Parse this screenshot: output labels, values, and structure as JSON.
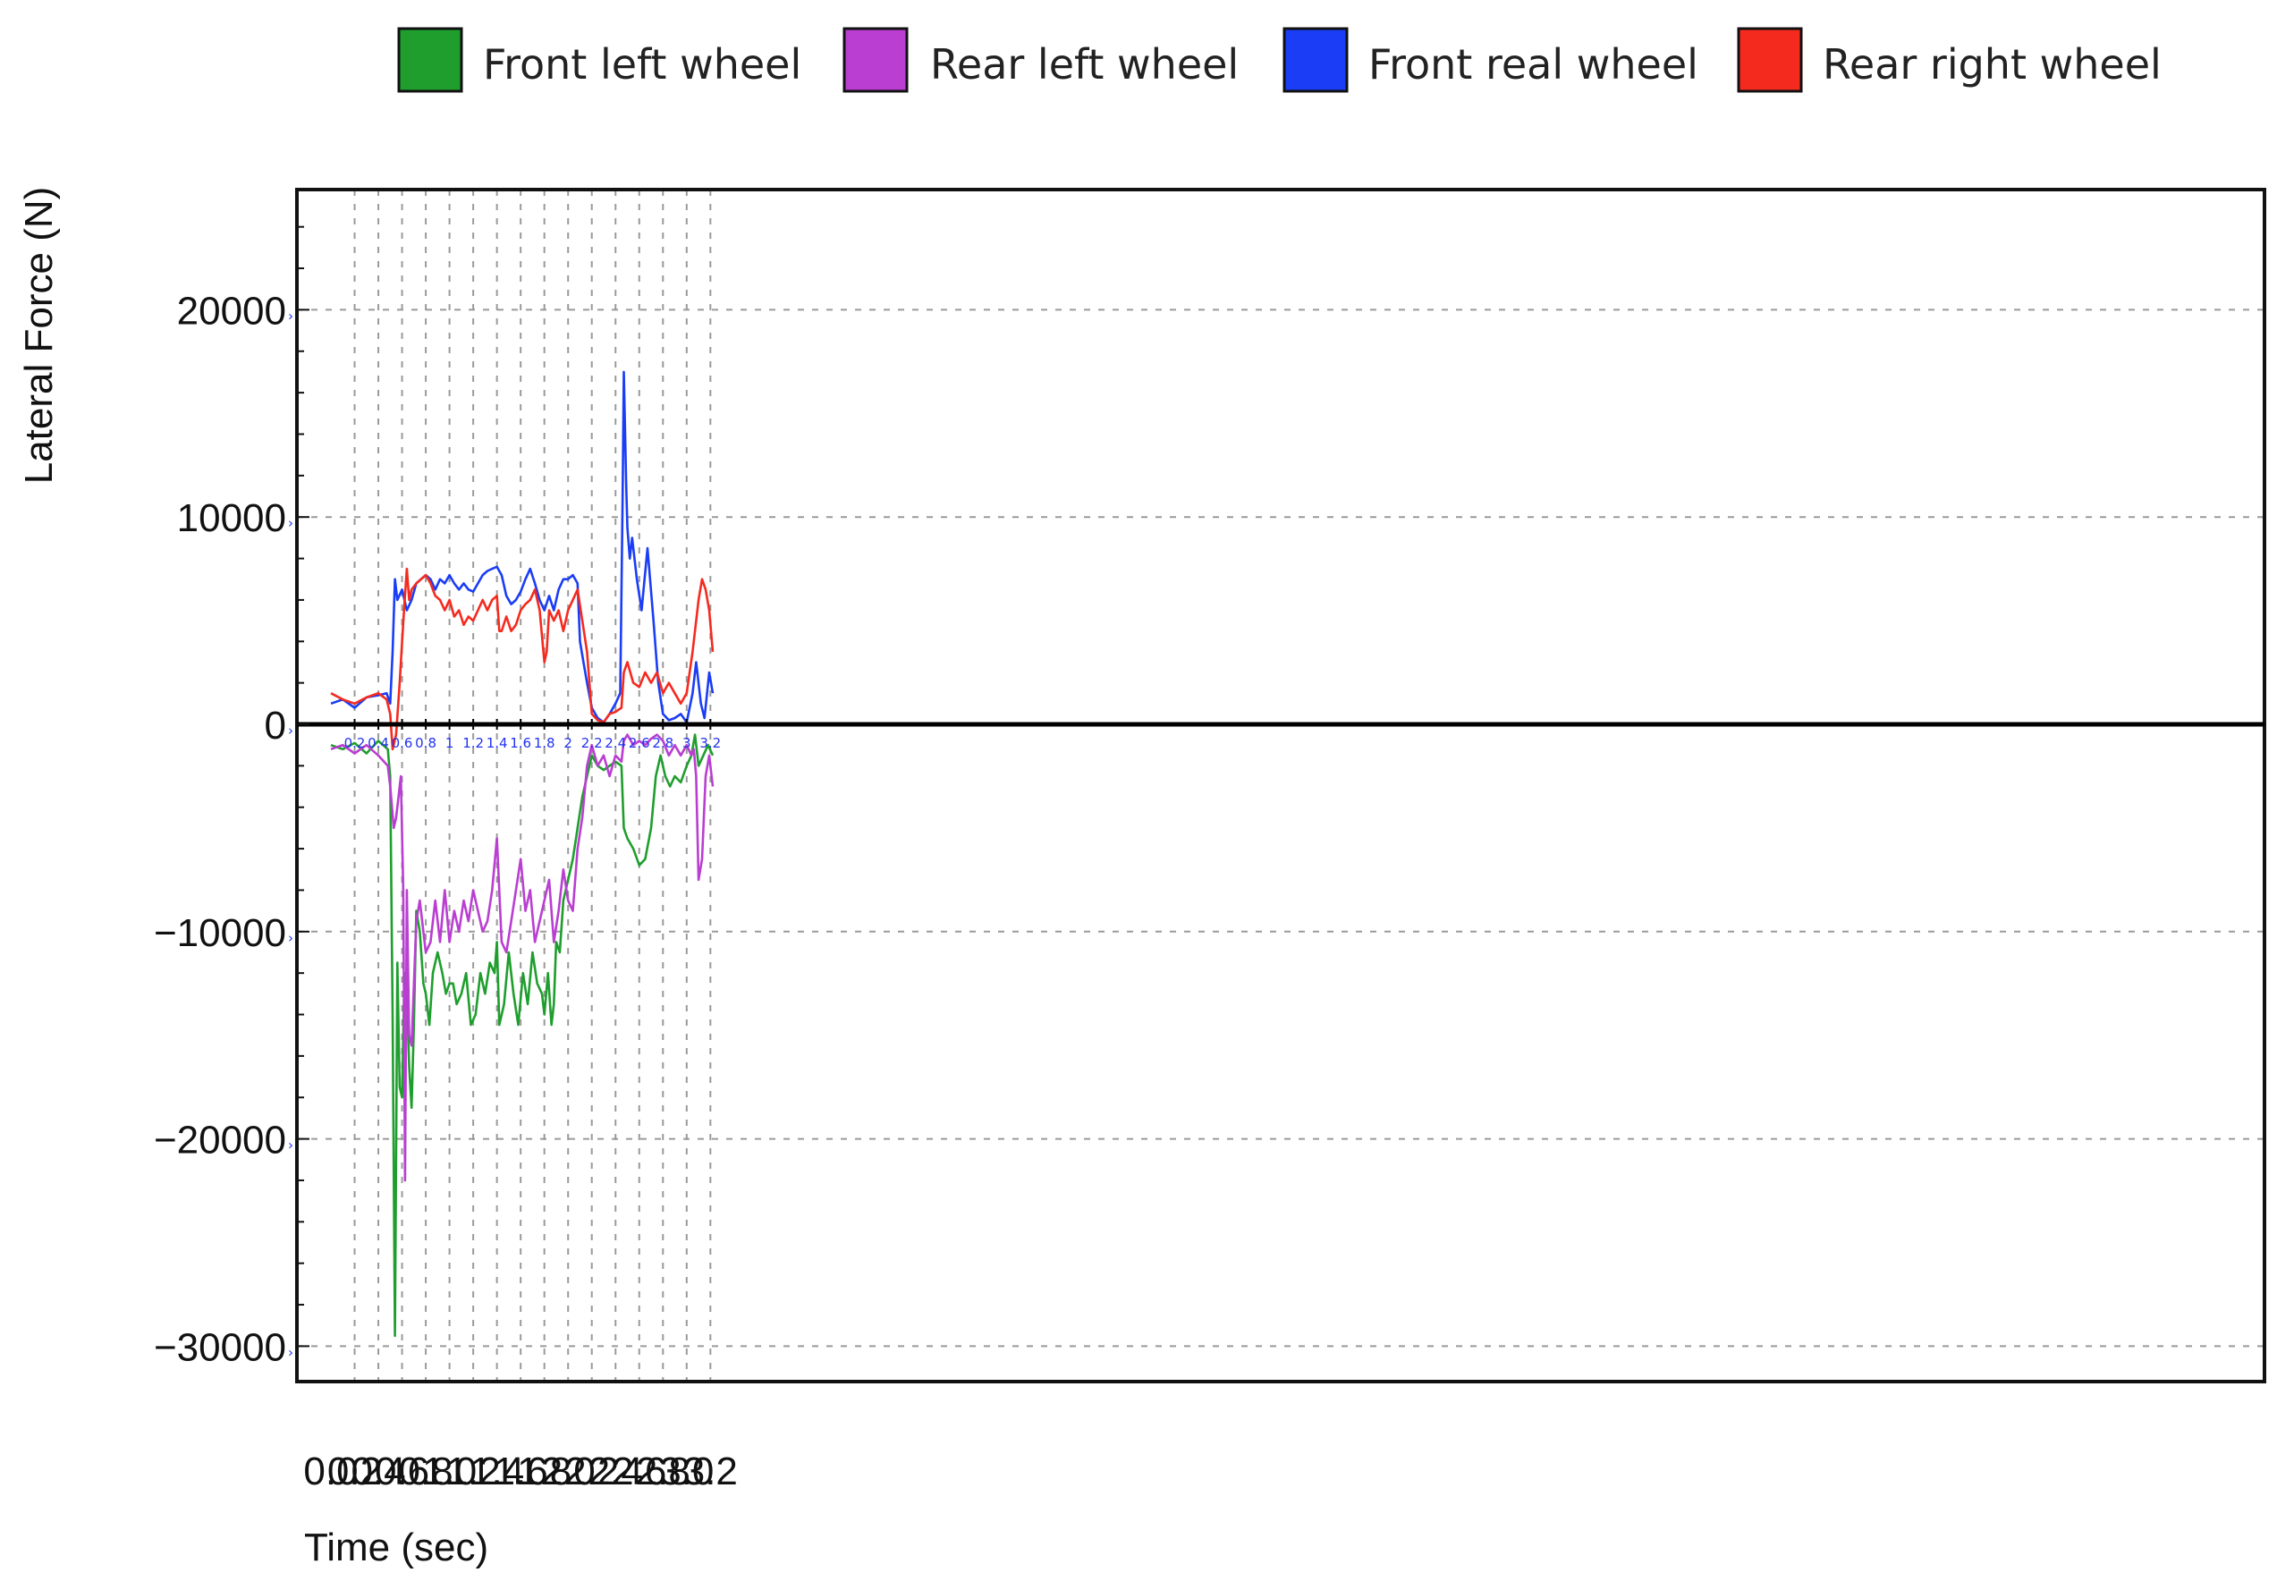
{
  "chart_data": {
    "type": "line",
    "xlabel": "Time (sec)",
    "ylabel": "Lateral Force (N)",
    "xlim": [
      0.0,
      3.23
    ],
    "ylim": [
      -32000,
      26000
    ],
    "x_ticks": [
      "0.0",
      "0.2",
      "0.4",
      "0.6",
      "0.8",
      "1.0",
      "1.2",
      "1.4",
      "1.6",
      "1.8",
      "2.0",
      "2.2",
      "2.4",
      "2.6",
      "2.8",
      "3.0",
      "3.2"
    ],
    "y_ticks": [
      "20000",
      "10000",
      "0",
      "−10000",
      "−20000",
      "−30000"
    ],
    "zero_axis_ticks": [
      "0.2",
      "0.4",
      "0.6",
      "0.8",
      "1",
      "1.2",
      "1.4",
      "1.6",
      "1.8",
      "2",
      "2.2",
      "2.4",
      "2.6",
      "2.8",
      "3",
      "3.2"
    ],
    "grid": true,
    "legend_position": "top",
    "series": [
      {
        "name": "Front left wheel",
        "color": "#1f9e2e",
        "x": [
          0.0,
          0.1,
          0.2,
          0.3,
          0.4,
          0.48,
          0.5,
          0.52,
          0.54,
          0.56,
          0.58,
          0.6,
          0.62,
          0.64,
          0.66,
          0.68,
          0.7,
          0.72,
          0.75,
          0.78,
          0.8,
          0.83,
          0.86,
          0.9,
          0.94,
          0.97,
          1.0,
          1.03,
          1.06,
          1.1,
          1.14,
          1.18,
          1.22,
          1.26,
          1.3,
          1.34,
          1.38,
          1.4,
          1.42,
          1.46,
          1.5,
          1.54,
          1.58,
          1.62,
          1.66,
          1.7,
          1.74,
          1.78,
          1.8,
          1.83,
          1.86,
          1.88,
          1.9,
          1.93,
          1.96,
          2.0,
          2.04,
          2.08,
          2.12,
          2.16,
          2.2,
          2.25,
          2.3,
          2.35,
          2.4,
          2.45,
          2.47,
          2.5,
          2.55,
          2.6,
          2.65,
          2.7,
          2.74,
          2.78,
          2.82,
          2.86,
          2.9,
          2.95,
          3.0,
          3.04,
          3.07,
          3.1,
          3.14,
          3.18,
          3.22
        ],
        "values": [
          -1000,
          -1200,
          -900,
          -1400,
          -800,
          -1200,
          -2500,
          -14000,
          -29500,
          -11500,
          -17500,
          -18000,
          -12000,
          -13000,
          -16500,
          -18500,
          -14500,
          -9000,
          -10000,
          -12500,
          -13000,
          -14500,
          -12000,
          -11000,
          -12000,
          -13000,
          -12500,
          -12500,
          -13500,
          -13000,
          -12000,
          -14500,
          -14000,
          -12000,
          -13000,
          -11500,
          -12000,
          -10500,
          -14500,
          -13500,
          -11000,
          -13000,
          -14500,
          -12000,
          -13500,
          -11000,
          -12500,
          -13000,
          -14000,
          -12000,
          -14500,
          -13500,
          -10500,
          -11000,
          -8500,
          -7500,
          -6500,
          -5000,
          -3500,
          -2500,
          -1500,
          -2000,
          -2200,
          -2000,
          -1800,
          -2000,
          -5000,
          -5500,
          -6000,
          -6800,
          -6500,
          -5000,
          -2500,
          -1500,
          -2500,
          -3000,
          -2500,
          -2800,
          -2000,
          -1500,
          -500,
          -2000,
          -1500,
          -1000,
          -1500
        ]
      },
      {
        "name": "Rear left wheel",
        "color": "#b93ed1",
        "x": [
          0.0,
          0.1,
          0.2,
          0.3,
          0.4,
          0.48,
          0.5,
          0.53,
          0.55,
          0.57,
          0.59,
          0.61,
          0.625,
          0.64,
          0.66,
          0.68,
          0.72,
          0.75,
          0.78,
          0.8,
          0.84,
          0.88,
          0.92,
          0.96,
          1.0,
          1.04,
          1.08,
          1.12,
          1.16,
          1.2,
          1.24,
          1.28,
          1.32,
          1.36,
          1.4,
          1.44,
          1.48,
          1.52,
          1.56,
          1.6,
          1.64,
          1.68,
          1.72,
          1.76,
          1.8,
          1.84,
          1.88,
          1.92,
          1.96,
          2.0,
          2.04,
          2.08,
          2.12,
          2.16,
          2.2,
          2.25,
          2.3,
          2.35,
          2.4,
          2.45,
          2.47,
          2.5,
          2.55,
          2.6,
          2.65,
          2.7,
          2.75,
          2.8,
          2.85,
          2.9,
          2.95,
          3.0,
          3.04,
          3.06,
          3.08,
          3.1,
          3.13,
          3.16,
          3.19,
          3.22
        ],
        "values": [
          -1200,
          -1000,
          -1400,
          -1000,
          -1500,
          -2000,
          -3000,
          -5000,
          -4500,
          -3500,
          -2500,
          -8000,
          -22000,
          -8000,
          -15000,
          -15500,
          -9500,
          -8500,
          -10000,
          -11000,
          -10500,
          -8500,
          -10500,
          -8000,
          -10500,
          -9000,
          -10000,
          -8500,
          -9500,
          -8000,
          -9000,
          -10000,
          -9500,
          -8000,
          -5500,
          -10500,
          -11000,
          -9500,
          -8000,
          -6500,
          -9000,
          -8000,
          -10500,
          -9500,
          -8500,
          -7500,
          -10500,
          -9000,
          -7000,
          -8500,
          -9000,
          -6000,
          -4500,
          -2000,
          -1000,
          -2000,
          -1500,
          -2500,
          -1500,
          -1800,
          -800,
          -500,
          -1000,
          -800,
          -1000,
          -700,
          -500,
          -800,
          -1500,
          -1000,
          -1500,
          -1000,
          -1500,
          -1200,
          -2500,
          -7500,
          -6500,
          -2500,
          -1500,
          -3000
        ]
      },
      {
        "name": "Front real wheel",
        "color": "#1a3df5",
        "x": [
          0.0,
          0.1,
          0.2,
          0.3,
          0.4,
          0.47,
          0.5,
          0.52,
          0.54,
          0.56,
          0.6,
          0.64,
          0.68,
          0.72,
          0.76,
          0.8,
          0.84,
          0.88,
          0.92,
          0.96,
          1.0,
          1.04,
          1.08,
          1.12,
          1.16,
          1.2,
          1.24,
          1.28,
          1.32,
          1.36,
          1.4,
          1.44,
          1.48,
          1.52,
          1.56,
          1.6,
          1.64,
          1.68,
          1.72,
          1.76,
          1.8,
          1.84,
          1.88,
          1.92,
          1.96,
          2.0,
          2.04,
          2.08,
          2.1,
          2.13,
          2.16,
          2.2,
          2.25,
          2.3,
          2.35,
          2.4,
          2.44,
          2.46,
          2.47,
          2.49,
          2.5,
          2.52,
          2.54,
          2.58,
          2.62,
          2.67,
          2.72,
          2.76,
          2.8,
          2.85,
          2.9,
          2.95,
          3.0,
          3.05,
          3.08,
          3.12,
          3.15,
          3.19,
          3.22
        ],
        "values": [
          1000,
          1200,
          800,
          1300,
          1400,
          1500,
          1000,
          3500,
          7000,
          6000,
          6500,
          5500,
          6000,
          6800,
          7000,
          7200,
          7000,
          6500,
          7000,
          6800,
          7200,
          6800,
          6500,
          6800,
          6500,
          6400,
          6800,
          7200,
          7400,
          7500,
          7600,
          7200,
          6200,
          5800,
          6000,
          6400,
          7000,
          7500,
          6800,
          6000,
          5500,
          6200,
          5500,
          6500,
          7000,
          7000,
          7200,
          6800,
          4000,
          3000,
          2000,
          800,
          300,
          100,
          500,
          1000,
          1500,
          11000,
          17000,
          11500,
          9500,
          8000,
          9000,
          7000,
          5500,
          8500,
          5000,
          2000,
          500,
          200,
          300,
          500,
          100,
          1500,
          3000,
          1000,
          300,
          2500,
          1500
        ]
      },
      {
        "name": "Rear right wheel",
        "color": "#f52a1f",
        "x": [
          0.0,
          0.1,
          0.2,
          0.3,
          0.4,
          0.47,
          0.5,
          0.52,
          0.55,
          0.58,
          0.6,
          0.62,
          0.64,
          0.66,
          0.68,
          0.72,
          0.76,
          0.8,
          0.84,
          0.88,
          0.92,
          0.96,
          1.0,
          1.04,
          1.08,
          1.12,
          1.16,
          1.2,
          1.24,
          1.28,
          1.32,
          1.36,
          1.4,
          1.42,
          1.44,
          1.48,
          1.52,
          1.56,
          1.6,
          1.64,
          1.68,
          1.72,
          1.76,
          1.8,
          1.82,
          1.84,
          1.88,
          1.92,
          1.96,
          2.0,
          2.04,
          2.08,
          2.12,
          2.16,
          2.2,
          2.25,
          2.3,
          2.35,
          2.4,
          2.45,
          2.47,
          2.5,
          2.55,
          2.6,
          2.65,
          2.7,
          2.75,
          2.8,
          2.85,
          2.9,
          2.95,
          3.0,
          3.05,
          3.1,
          3.13,
          3.16,
          3.19,
          3.22
        ],
        "values": [
          1500,
          1200,
          1000,
          1300,
          1500,
          1200,
          500,
          -1200,
          -500,
          2000,
          4000,
          5800,
          7500,
          6000,
          6500,
          6800,
          7000,
          7200,
          6800,
          6200,
          6000,
          5500,
          6000,
          5200,
          5500,
          4800,
          5200,
          5000,
          5500,
          6000,
          5500,
          6000,
          6200,
          4500,
          4500,
          5200,
          4500,
          4800,
          5500,
          5800,
          6000,
          6500,
          5500,
          3000,
          3500,
          5500,
          5000,
          5500,
          4500,
          5500,
          6000,
          6500,
          5000,
          3500,
          500,
          200,
          100,
          500,
          600,
          800,
          2500,
          3000,
          2000,
          1800,
          2500,
          2000,
          2500,
          1500,
          2000,
          1500,
          1000,
          1500,
          3500,
          6000,
          7000,
          6500,
          5500,
          3500
        ]
      }
    ]
  }
}
